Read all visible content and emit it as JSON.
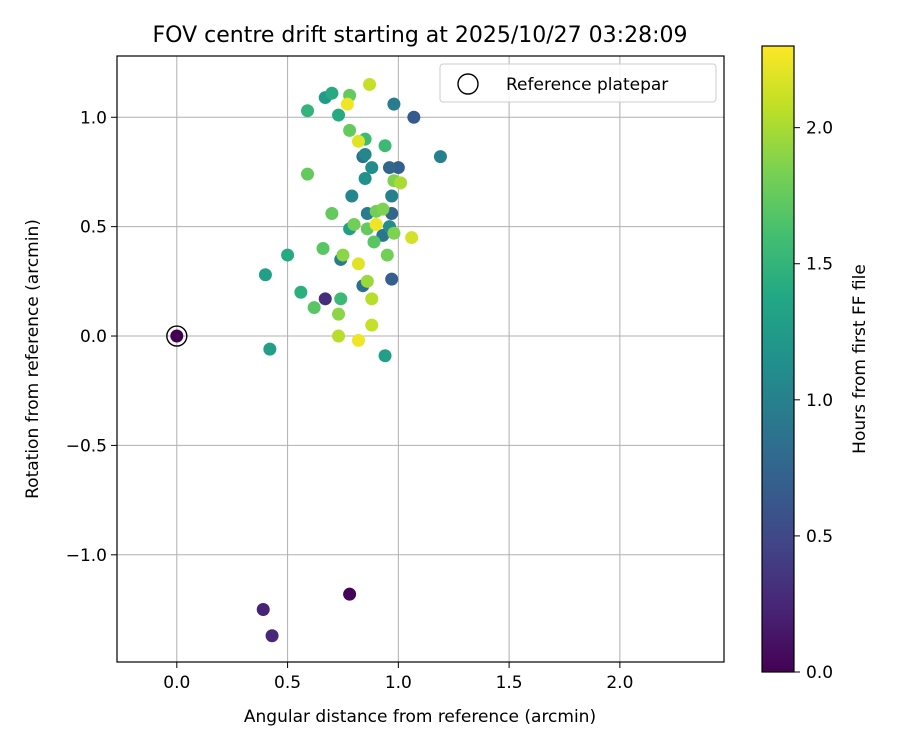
{
  "chart_data": {
    "type": "scatter",
    "title": "FOV centre drift starting at 2025/10/27 03:28:09",
    "xlabel": "Angular distance from reference (arcmin)",
    "ylabel": "Rotation from reference (arcmin)",
    "xlim": [
      -0.27,
      2.47
    ],
    "ylim": [
      -1.49,
      1.28
    ],
    "xticks": [
      0.0,
      0.5,
      1.0,
      1.5,
      2.0
    ],
    "xtick_labels": [
      "0.0",
      "0.5",
      "1.0",
      "1.5",
      "2.0"
    ],
    "yticks": [
      -1.0,
      -0.5,
      0.0,
      0.5,
      1.0
    ],
    "ytick_labels": [
      "−1.0",
      "−0.5",
      "0.0",
      "0.5",
      "1.0"
    ],
    "grid": true,
    "legend": {
      "label": "Reference platepar",
      "position": "top-right"
    },
    "reference_point": {
      "x": 0.0,
      "y": 0.0
    },
    "colorbar": {
      "label": "Hours from first FF file",
      "range": [
        0.0,
        2.3
      ],
      "ticks": [
        0.0,
        0.5,
        1.0,
        1.5,
        2.0
      ],
      "tick_labels": [
        "0.0",
        "0.5",
        "1.0",
        "1.5",
        "2.0"
      ],
      "colormap": [
        "#440154",
        "#482475",
        "#414487",
        "#355f8d",
        "#2a788e",
        "#21918c",
        "#22a884",
        "#44bf70",
        "#7ad151",
        "#bddf26",
        "#fde725"
      ]
    },
    "points": [
      {
        "x": 0.0,
        "y": 0.0,
        "t": 0.0
      },
      {
        "x": 0.78,
        "y": -1.18,
        "t": 0.02
      },
      {
        "x": 0.39,
        "y": -1.25,
        "t": 0.22
      },
      {
        "x": 0.43,
        "y": -1.37,
        "t": 0.25
      },
      {
        "x": 0.67,
        "y": 0.17,
        "t": 0.3
      },
      {
        "x": 1.07,
        "y": 1.0,
        "t": 0.65
      },
      {
        "x": 1.0,
        "y": 0.77,
        "t": 0.7
      },
      {
        "x": 0.96,
        "y": 0.77,
        "t": 0.75
      },
      {
        "x": 0.97,
        "y": 0.26,
        "t": 0.7
      },
      {
        "x": 0.97,
        "y": 0.56,
        "t": 0.75
      },
      {
        "x": 0.84,
        "y": 0.82,
        "t": 0.85
      },
      {
        "x": 0.84,
        "y": 0.23,
        "t": 0.85
      },
      {
        "x": 0.93,
        "y": 0.46,
        "t": 0.9
      },
      {
        "x": 0.98,
        "y": 1.06,
        "t": 0.95
      },
      {
        "x": 0.86,
        "y": 0.56,
        "t": 0.95
      },
      {
        "x": 0.74,
        "y": 0.35,
        "t": 0.95
      },
      {
        "x": 1.19,
        "y": 0.82,
        "t": 1.0
      },
      {
        "x": 0.97,
        "y": 0.64,
        "t": 1.0
      },
      {
        "x": 0.79,
        "y": 0.64,
        "t": 1.05
      },
      {
        "x": 0.85,
        "y": 0.83,
        "t": 1.05
      },
      {
        "x": 0.88,
        "y": 0.77,
        "t": 1.1
      },
      {
        "x": 0.85,
        "y": 0.72,
        "t": 1.15
      },
      {
        "x": 0.96,
        "y": 0.5,
        "t": 1.1
      },
      {
        "x": 0.67,
        "y": 1.09,
        "t": 1.25
      },
      {
        "x": 0.78,
        "y": 0.49,
        "t": 1.3
      },
      {
        "x": 0.4,
        "y": 0.28,
        "t": 1.3
      },
      {
        "x": 0.42,
        "y": -0.06,
        "t": 1.3
      },
      {
        "x": 0.94,
        "y": -0.09,
        "t": 1.3
      },
      {
        "x": 0.7,
        "y": 1.11,
        "t": 1.4
      },
      {
        "x": 0.73,
        "y": 1.01,
        "t": 1.4
      },
      {
        "x": 0.5,
        "y": 0.37,
        "t": 1.4
      },
      {
        "x": 0.56,
        "y": 0.2,
        "t": 1.45
      },
      {
        "x": 0.59,
        "y": 1.03,
        "t": 1.5
      },
      {
        "x": 0.74,
        "y": 0.17,
        "t": 1.55
      },
      {
        "x": 0.85,
        "y": 0.9,
        "t": 1.55
      },
      {
        "x": 0.94,
        "y": 0.87,
        "t": 1.55
      },
      {
        "x": 0.62,
        "y": 0.13,
        "t": 1.7
      },
      {
        "x": 0.66,
        "y": 0.4,
        "t": 1.7
      },
      {
        "x": 0.89,
        "y": 0.43,
        "t": 1.7
      },
      {
        "x": 0.59,
        "y": 0.74,
        "t": 1.75
      },
      {
        "x": 0.7,
        "y": 0.56,
        "t": 1.75
      },
      {
        "x": 0.78,
        "y": 1.1,
        "t": 1.75
      },
      {
        "x": 0.78,
        "y": 0.94,
        "t": 1.75
      },
      {
        "x": 0.86,
        "y": 0.49,
        "t": 1.75
      },
      {
        "x": 0.8,
        "y": 0.51,
        "t": 1.8
      },
      {
        "x": 0.95,
        "y": 0.37,
        "t": 1.8
      },
      {
        "x": 0.9,
        "y": 0.57,
        "t": 1.8
      },
      {
        "x": 0.93,
        "y": 0.58,
        "t": 1.85
      },
      {
        "x": 0.98,
        "y": 0.71,
        "t": 1.85
      },
      {
        "x": 0.98,
        "y": 0.47,
        "t": 1.85
      },
      {
        "x": 0.75,
        "y": 0.37,
        "t": 1.9
      },
      {
        "x": 0.73,
        "y": 0.1,
        "t": 1.9
      },
      {
        "x": 0.86,
        "y": 0.25,
        "t": 1.95
      },
      {
        "x": 1.01,
        "y": 0.7,
        "t": 2.0
      },
      {
        "x": 0.73,
        "y": 0.0,
        "t": 2.05
      },
      {
        "x": 0.88,
        "y": 0.17,
        "t": 2.05
      },
      {
        "x": 0.88,
        "y": 0.05,
        "t": 2.1
      },
      {
        "x": 0.87,
        "y": 1.15,
        "t": 2.1
      },
      {
        "x": 1.06,
        "y": 0.45,
        "t": 2.15
      },
      {
        "x": 0.82,
        "y": 0.89,
        "t": 2.2
      },
      {
        "x": 0.82,
        "y": 0.33,
        "t": 2.2
      },
      {
        "x": 0.82,
        "y": -0.02,
        "t": 2.25
      },
      {
        "x": 0.77,
        "y": 1.06,
        "t": 2.25
      },
      {
        "x": 0.9,
        "y": 0.51,
        "t": 2.25
      }
    ]
  }
}
